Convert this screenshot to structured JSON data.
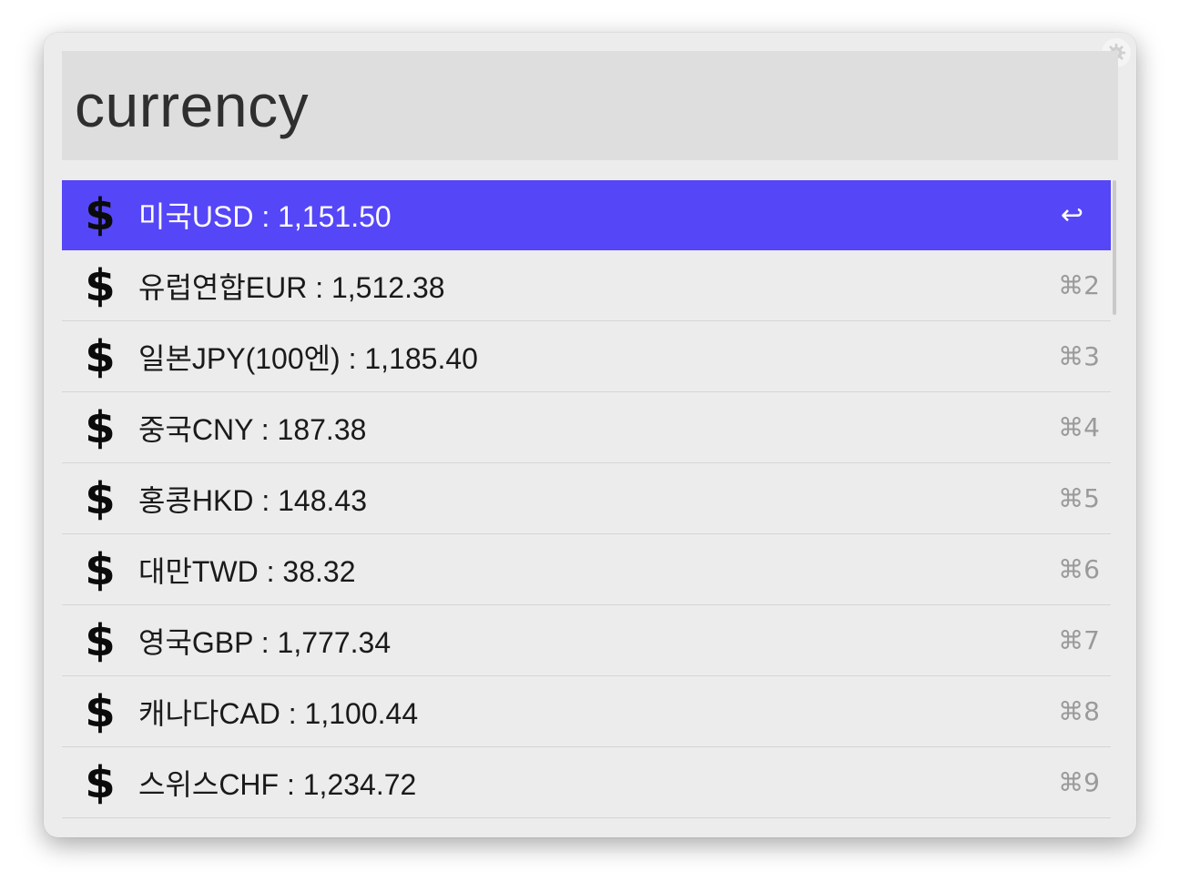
{
  "search": {
    "query": "currency"
  },
  "icons": {
    "settings": "gear-icon",
    "result": "dollar-icon",
    "enter": "return-icon"
  },
  "colors": {
    "selection": "#5546f7",
    "window": "#ececec",
    "search_bg": "#dedede"
  },
  "results": [
    {
      "icon": "$",
      "label": "미국USD : 1,151.50",
      "shortcut": "↩"
    },
    {
      "icon": "$",
      "label": "유럽연합EUR : 1,512.38",
      "shortcut": "⌘2"
    },
    {
      "icon": "$",
      "label": "일본JPY(100엔) : 1,185.40",
      "shortcut": "⌘3"
    },
    {
      "icon": "$",
      "label": "중국CNY : 187.38",
      "shortcut": "⌘4"
    },
    {
      "icon": "$",
      "label": "홍콩HKD : 148.43",
      "shortcut": "⌘5"
    },
    {
      "icon": "$",
      "label": "대만TWD : 38.32",
      "shortcut": "⌘6"
    },
    {
      "icon": "$",
      "label": "영국GBP : 1,777.34",
      "shortcut": "⌘7"
    },
    {
      "icon": "$",
      "label": "캐나다CAD : 1,100.44",
      "shortcut": "⌘8"
    },
    {
      "icon": "$",
      "label": "스위스CHF : 1,234.72",
      "shortcut": "⌘9"
    }
  ]
}
